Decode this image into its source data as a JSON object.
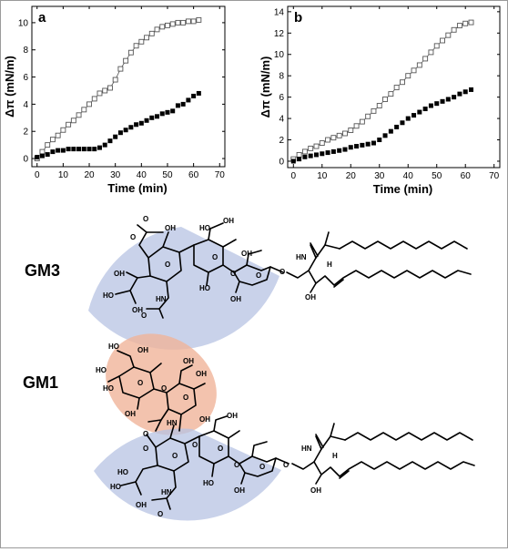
{
  "chart_data": [
    {
      "type": "scatter",
      "panel_label": "a",
      "xlabel": "Time (min)",
      "ylabel": "Δπ (mN/m)",
      "xlim": [
        -2,
        72
      ],
      "ylim": [
        -0.6,
        11.2
      ],
      "xticks": [
        0,
        10,
        20,
        30,
        40,
        50,
        60,
        70
      ],
      "yticks": [
        0,
        2,
        4,
        6,
        8,
        10
      ],
      "series": [
        {
          "marker": "open-square",
          "color": "#555555",
          "line": true,
          "x": [
            0,
            2,
            4,
            6,
            8,
            10,
            12,
            14,
            16,
            18,
            20,
            22,
            24,
            26,
            28,
            30,
            32,
            34,
            36,
            38,
            40,
            42,
            44,
            46,
            48,
            50,
            52,
            54,
            56,
            58,
            60,
            62
          ],
          "y": [
            0.0,
            0.5,
            1.0,
            1.4,
            1.7,
            2.1,
            2.5,
            2.8,
            3.2,
            3.6,
            4.0,
            4.4,
            4.8,
            5.0,
            5.2,
            5.8,
            6.6,
            7.2,
            7.8,
            8.3,
            8.6,
            8.9,
            9.2,
            9.5,
            9.7,
            9.8,
            9.9,
            10.0,
            10.0,
            10.1,
            10.1,
            10.2
          ]
        },
        {
          "marker": "filled-square",
          "color": "#000000",
          "line": false,
          "x": [
            0,
            2,
            4,
            6,
            8,
            10,
            12,
            14,
            16,
            18,
            20,
            22,
            24,
            26,
            28,
            30,
            32,
            34,
            36,
            38,
            40,
            42,
            44,
            46,
            48,
            50,
            52,
            54,
            56,
            58,
            60,
            62
          ],
          "y": [
            0.1,
            0.2,
            0.3,
            0.5,
            0.6,
            0.6,
            0.7,
            0.7,
            0.7,
            0.7,
            0.7,
            0.7,
            0.8,
            1.0,
            1.3,
            1.6,
            1.9,
            2.1,
            2.3,
            2.5,
            2.6,
            2.8,
            3.0,
            3.1,
            3.3,
            3.4,
            3.5,
            3.9,
            4.0,
            4.3,
            4.6,
            4.8
          ]
        }
      ]
    },
    {
      "type": "scatter",
      "panel_label": "b",
      "xlabel": "Time (min)",
      "ylabel": "Δπ (mN/m)",
      "xlim": [
        -2,
        72
      ],
      "ylim": [
        -0.6,
        14.5
      ],
      "xticks": [
        0,
        10,
        20,
        30,
        40,
        50,
        60,
        70
      ],
      "yticks": [
        0,
        2,
        4,
        6,
        8,
        10,
        12,
        14
      ],
      "series": [
        {
          "marker": "open-square",
          "color": "#555555",
          "line": true,
          "x": [
            0,
            2,
            4,
            6,
            8,
            10,
            12,
            14,
            16,
            18,
            20,
            22,
            24,
            26,
            28,
            30,
            32,
            34,
            36,
            38,
            40,
            42,
            44,
            46,
            48,
            50,
            52,
            54,
            56,
            58,
            60,
            62
          ],
          "y": [
            0.2,
            0.6,
            0.9,
            1.2,
            1.4,
            1.7,
            2.0,
            2.2,
            2.4,
            2.6,
            2.9,
            3.3,
            3.7,
            4.2,
            4.7,
            5.2,
            5.8,
            6.3,
            6.9,
            7.4,
            8.0,
            8.5,
            9.0,
            9.6,
            10.2,
            10.8,
            11.3,
            11.8,
            12.3,
            12.7,
            12.9,
            13.0
          ]
        },
        {
          "marker": "filled-square",
          "color": "#000000",
          "line": false,
          "x": [
            0,
            2,
            4,
            6,
            8,
            10,
            12,
            14,
            16,
            18,
            20,
            22,
            24,
            26,
            28,
            30,
            32,
            34,
            36,
            38,
            40,
            42,
            44,
            46,
            48,
            50,
            52,
            54,
            56,
            58,
            60,
            62
          ],
          "y": [
            0.0,
            0.2,
            0.4,
            0.5,
            0.6,
            0.7,
            0.8,
            0.9,
            1.0,
            1.1,
            1.3,
            1.4,
            1.5,
            1.6,
            1.7,
            2.0,
            2.4,
            2.8,
            3.2,
            3.6,
            4.0,
            4.3,
            4.6,
            4.9,
            5.2,
            5.4,
            5.6,
            5.8,
            6.0,
            6.3,
            6.5,
            6.7
          ]
        }
      ]
    }
  ],
  "structures": {
    "gm3": {
      "label": "GM3",
      "highlight_color": "#b7c3e3",
      "atoms": [
        "O",
        "O",
        "O",
        "OH",
        "HO",
        "OH",
        "OH",
        "HO",
        "OH",
        "HO",
        "O",
        "O",
        "HN",
        "O",
        "O",
        "O",
        "OH",
        "OH",
        "HN",
        "H",
        "OH"
      ]
    },
    "gm1": {
      "label": "GM1",
      "highlight_color_top": "#f0b49a",
      "highlight_color_bottom": "#b7c3e3",
      "top_atoms": [
        "HO",
        "OH",
        "HO",
        "OH",
        "HO",
        "O",
        "O",
        "OH",
        "O",
        "OH",
        "HN",
        "O"
      ],
      "bottom_atoms": [
        "O",
        "O",
        "O",
        "HO",
        "OH",
        "HO",
        "OH",
        "OH",
        "HO",
        "OH",
        "O",
        "O",
        "HN",
        "O",
        "O",
        "O",
        "HN",
        "H",
        "OH"
      ]
    }
  }
}
